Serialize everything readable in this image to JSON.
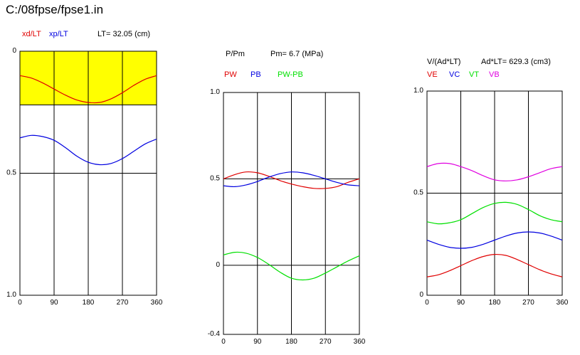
{
  "window": {
    "title": "C:/08fpse/fpse1.in"
  },
  "colors": {
    "red": "#e00000",
    "blue": "#0000e0",
    "green": "#00e000",
    "magenta": "#e000e0",
    "yellow": "#ffff00"
  },
  "chart_data": [
    {
      "type": "line",
      "header": {
        "legend": [
          "xd/LT",
          "xp/LT"
        ],
        "info": "LT= 32.05 (cm)"
      },
      "x": [
        0,
        30,
        60,
        90,
        120,
        150,
        180,
        210,
        240,
        270,
        300,
        330,
        360
      ],
      "xticks": [
        "0",
        "90",
        "180",
        "270",
        "360"
      ],
      "xlim": [
        0,
        360
      ],
      "ylim": [
        1.0,
        0
      ],
      "yticks": [
        "0",
        "0.5",
        "1.0"
      ],
      "yinverted": true,
      "shaded_band": {
        "from": 0,
        "to": 0.22,
        "color": "yellow"
      },
      "series": [
        {
          "name": "xd/LT",
          "color": "red",
          "values": [
            0.1,
            0.11,
            0.13,
            0.155,
            0.18,
            0.2,
            0.21,
            0.21,
            0.195,
            0.17,
            0.14,
            0.115,
            0.1
          ]
        },
        {
          "name": "xp/LT",
          "color": "blue",
          "values": [
            0.355,
            0.345,
            0.35,
            0.365,
            0.395,
            0.43,
            0.455,
            0.465,
            0.46,
            0.44,
            0.41,
            0.38,
            0.36
          ]
        }
      ]
    },
    {
      "type": "line",
      "header": {
        "legend": [
          "PW",
          "PB",
          "PW-PB"
        ],
        "left": "P/Pm",
        "info": "Pm= 6.7 (MPa)"
      },
      "x": [
        0,
        30,
        60,
        90,
        120,
        150,
        180,
        210,
        240,
        270,
        300,
        330,
        360
      ],
      "xticks": [
        "0",
        "90",
        "180",
        "270",
        "360"
      ],
      "xlim": [
        0,
        360
      ],
      "ylim": [
        -0.4,
        1.0
      ],
      "yticks": [
        "1.0",
        "0.5",
        "0",
        "-0.4"
      ],
      "series": [
        {
          "name": "PW",
          "color": "red",
          "values": [
            0.5,
            0.525,
            0.54,
            0.535,
            0.515,
            0.49,
            0.47,
            0.455,
            0.445,
            0.445,
            0.455,
            0.48,
            0.5
          ]
        },
        {
          "name": "PB",
          "color": "blue",
          "values": [
            0.46,
            0.455,
            0.465,
            0.485,
            0.51,
            0.53,
            0.54,
            0.535,
            0.52,
            0.5,
            0.48,
            0.465,
            0.46
          ]
        },
        {
          "name": "PW-PB",
          "color": "green",
          "values": [
            0.06,
            0.075,
            0.07,
            0.045,
            0.005,
            -0.04,
            -0.075,
            -0.085,
            -0.075,
            -0.045,
            -0.01,
            0.025,
            0.055
          ]
        }
      ]
    },
    {
      "type": "line",
      "header": {
        "legend": [
          "VE",
          "VC",
          "VT",
          "VB"
        ],
        "left": "V/(Ad*LT)",
        "info": "Ad*LT= 629.3 (cm3)"
      },
      "x": [
        0,
        30,
        60,
        90,
        120,
        150,
        180,
        210,
        240,
        270,
        300,
        330,
        360
      ],
      "xticks": [
        "0",
        "90",
        "180",
        "270",
        "360"
      ],
      "xlim": [
        0,
        360
      ],
      "ylim": [
        0,
        1.0
      ],
      "yticks": [
        "1.0",
        "0.5",
        "0"
      ],
      "series": [
        {
          "name": "VE",
          "color": "red",
          "values": [
            0.09,
            0.1,
            0.12,
            0.145,
            0.17,
            0.19,
            0.2,
            0.195,
            0.175,
            0.15,
            0.125,
            0.105,
            0.09
          ]
        },
        {
          "name": "VC",
          "color": "blue",
          "values": [
            0.27,
            0.25,
            0.235,
            0.23,
            0.235,
            0.25,
            0.27,
            0.29,
            0.305,
            0.31,
            0.305,
            0.29,
            0.27
          ]
        },
        {
          "name": "VT",
          "color": "green",
          "values": [
            0.36,
            0.35,
            0.355,
            0.37,
            0.4,
            0.43,
            0.45,
            0.455,
            0.445,
            0.42,
            0.39,
            0.37,
            0.36
          ]
        },
        {
          "name": "VB",
          "color": "magenta",
          "values": [
            0.63,
            0.645,
            0.645,
            0.63,
            0.61,
            0.585,
            0.565,
            0.56,
            0.565,
            0.58,
            0.6,
            0.62,
            0.63
          ]
        }
      ]
    }
  ]
}
